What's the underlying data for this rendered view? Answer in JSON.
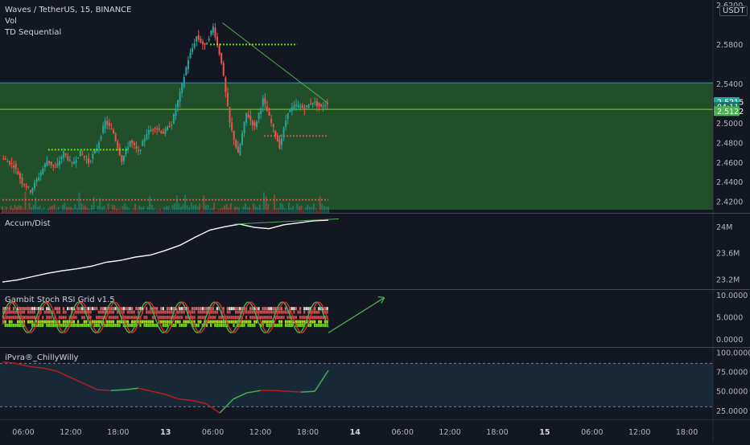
{
  "header": {
    "symbol_line": "Waves / TetherUS, 15, BINANCE",
    "indicators": [
      "Vol",
      "TD Sequential"
    ],
    "currency": "USDT"
  },
  "panes": {
    "accum_title": "Accum/Dist",
    "stoch_title": "Gambit Stoch RSI Grid v1.5",
    "ipvra_title": "iPvra®_ChillyWilly"
  },
  "colors": {
    "background": "#131722",
    "up": "#26a69a",
    "down": "#ef5350",
    "zone_fill": "#2e7d32",
    "zone_top_line": "#1e9bd7",
    "accent_green": "#4caf50",
    "white_line": "#ffffff"
  },
  "chart_data": [
    {
      "type": "candlestick",
      "title": "Waves / TetherUS, 15, BINANCE",
      "y_ticks": [
        "2.6200",
        "2.5800",
        "2.5400",
        "2.5000",
        "2.4800",
        "2.4600",
        "2.4400",
        "2.4200"
      ],
      "ylim": [
        2.412,
        2.622
      ],
      "price_badges": [
        {
          "label": "2.5215",
          "value": 2.5215,
          "color": "#26a69a"
        },
        {
          "label": "04:11",
          "value": 2.5165,
          "color": "#1f6b5a"
        },
        {
          "label": "2.5122",
          "value": 2.5122,
          "color": "#4caf50"
        }
      ],
      "zone": {
        "top": 2.541,
        "bottom": 2.412,
        "line": 2.514
      },
      "close_path": [
        {
          "t": 0,
          "c": 2.465
        },
        {
          "t": 6,
          "c": 2.457
        },
        {
          "t": 10,
          "c": 2.44
        },
        {
          "t": 14,
          "c": 2.431
        },
        {
          "t": 18,
          "c": 2.446
        },
        {
          "t": 22,
          "c": 2.462
        },
        {
          "t": 26,
          "c": 2.454
        },
        {
          "t": 30,
          "c": 2.47
        },
        {
          "t": 34,
          "c": 2.458
        },
        {
          "t": 38,
          "c": 2.47
        },
        {
          "t": 42,
          "c": 2.46
        },
        {
          "t": 46,
          "c": 2.475
        },
        {
          "t": 50,
          "c": 2.502
        },
        {
          "t": 54,
          "c": 2.49
        },
        {
          "t": 58,
          "c": 2.462
        },
        {
          "t": 62,
          "c": 2.482
        },
        {
          "t": 66,
          "c": 2.47
        },
        {
          "t": 70,
          "c": 2.49
        },
        {
          "t": 74,
          "c": 2.496
        },
        {
          "t": 78,
          "c": 2.49
        },
        {
          "t": 82,
          "c": 2.5
        },
        {
          "t": 86,
          "c": 2.53
        },
        {
          "t": 90,
          "c": 2.565
        },
        {
          "t": 94,
          "c": 2.588
        },
        {
          "t": 98,
          "c": 2.578
        },
        {
          "t": 102,
          "c": 2.598
        },
        {
          "t": 106,
          "c": 2.562
        },
        {
          "t": 110,
          "c": 2.5
        },
        {
          "t": 114,
          "c": 2.468
        },
        {
          "t": 118,
          "c": 2.51
        },
        {
          "t": 122,
          "c": 2.496
        },
        {
          "t": 126,
          "c": 2.524
        },
        {
          "t": 130,
          "c": 2.5
        },
        {
          "t": 134,
          "c": 2.476
        },
        {
          "t": 138,
          "c": 2.512
        },
        {
          "t": 142,
          "c": 2.518
        },
        {
          "t": 146,
          "c": 2.515
        },
        {
          "t": 150,
          "c": 2.522
        },
        {
          "t": 154,
          "c": 2.516
        },
        {
          "t": 157,
          "c": 2.521
        }
      ],
      "levels": [
        {
          "value": 2.58,
          "t0": 100,
          "t1": 142
        },
        {
          "value": 2.487,
          "t0": 126,
          "t1": 157
        },
        {
          "value": 2.473,
          "t0": 22,
          "t1": 60
        },
        {
          "value": 2.422,
          "t0": 0,
          "t1": 157
        }
      ],
      "trendline": [
        {
          "t": 106,
          "v": 2.602
        },
        {
          "t": 157,
          "v": 2.52
        }
      ]
    },
    {
      "type": "line",
      "title": "Accum/Dist",
      "y_ticks": [
        "24M",
        "23.6M",
        "23.2M"
      ],
      "ylim": [
        23.1,
        24.15
      ],
      "series": [
        {
          "values": [
            23.16,
            23.19,
            23.24,
            23.29,
            23.33,
            23.36,
            23.4,
            23.46,
            23.49,
            23.54,
            23.57,
            23.64,
            23.72,
            23.84,
            23.95,
            24.0,
            24.04,
            23.99,
            23.97,
            24.03,
            24.06,
            24.09,
            24.1
          ]
        }
      ]
    },
    {
      "type": "line",
      "title": "Gambit Stoch RSI Grid v1.5",
      "y_ticks": [
        "10.0000",
        "5.0000",
        "0.0000"
      ],
      "ylim": [
        -1,
        10.5
      ]
    },
    {
      "type": "line",
      "title": "iPvra®_ChillyWilly",
      "y_ticks": [
        "100.0000",
        "75.0000",
        "50.0000",
        "25.0000"
      ],
      "ylim": [
        18,
        102
      ],
      "series": [
        {
          "values": [
            88,
            86,
            82,
            80,
            76,
            68,
            60,
            52,
            51,
            52,
            54,
            50,
            46,
            40,
            38,
            34,
            22,
            40,
            48,
            51,
            51,
            50,
            49,
            50,
            77
          ]
        }
      ]
    }
  ],
  "x_axis": {
    "labels": [
      "06:00",
      "12:00",
      "18:00",
      "13",
      "06:00",
      "12:00",
      "18:00",
      "14",
      "06:00",
      "12:00",
      "18:00",
      "15",
      "06:00",
      "12:00",
      "18:00"
    ],
    "bold": [
      "13",
      "14",
      "15"
    ]
  }
}
